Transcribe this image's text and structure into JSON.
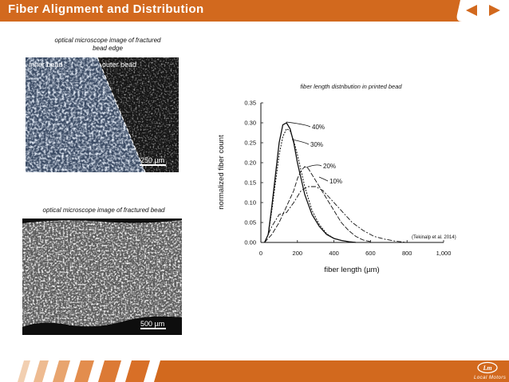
{
  "header": {
    "title": "Fiber Alignment and Distribution",
    "nav": {
      "prev_icon": "left-arrow-icon",
      "next_icon": "right-arrow-icon"
    }
  },
  "images": {
    "top": {
      "caption": "optical microscope image of fractured bead edge",
      "caption_line1": "optical microscope image of  fractured",
      "caption_line2": "bead edge",
      "inner_label": "inner bead",
      "outer_label": "outer bead",
      "scale_label": "250 µm"
    },
    "bottom": {
      "caption": "optical microscope image of  fractured bead",
      "scale_label": "500 µm"
    }
  },
  "chart_data": {
    "type": "line",
    "title": "fiber length distribution in printed bead",
    "xlabel": "fiber length (µm)",
    "ylabel": "normalized fiber count",
    "xlim": [
      0,
      1000
    ],
    "ylim": [
      0,
      0.35
    ],
    "x_ticks": [
      "0",
      "200",
      "400",
      "600",
      "800",
      "1,000"
    ],
    "y_ticks": [
      "0.00",
      "0.05",
      "0.10",
      "0.15",
      "0.20",
      "0.25",
      "0.30",
      "0.35"
    ],
    "grid": false,
    "citation": "(Tekinalp et al. 2014)",
    "series": [
      {
        "name": "40%",
        "x": [
          20,
          40,
          60,
          80,
          100,
          120,
          140,
          160,
          180,
          200,
          240,
          280,
          320,
          360,
          400,
          440,
          480,
          520
        ],
        "y": [
          0.0,
          0.02,
          0.09,
          0.17,
          0.25,
          0.295,
          0.3,
          0.285,
          0.25,
          0.2,
          0.12,
          0.07,
          0.04,
          0.02,
          0.01,
          0.005,
          0.002,
          0.0
        ]
      },
      {
        "name": "30%",
        "x": [
          20,
          40,
          60,
          80,
          100,
          120,
          140,
          160,
          180,
          200,
          240,
          280,
          320,
          360,
          400,
          440,
          480,
          520
        ],
        "y": [
          0.0,
          0.02,
          0.08,
          0.15,
          0.22,
          0.265,
          0.285,
          0.28,
          0.255,
          0.22,
          0.14,
          0.08,
          0.045,
          0.022,
          0.01,
          0.005,
          0.002,
          0.0
        ]
      },
      {
        "name": "20%",
        "x": [
          20,
          60,
          100,
          140,
          180,
          200,
          220,
          240,
          260,
          280,
          320,
          360,
          400,
          440,
          480,
          520,
          560,
          600
        ],
        "y": [
          0.0,
          0.02,
          0.05,
          0.09,
          0.13,
          0.16,
          0.18,
          0.19,
          0.185,
          0.17,
          0.14,
          0.11,
          0.08,
          0.05,
          0.03,
          0.015,
          0.006,
          0.002
        ]
      },
      {
        "name": "10%",
        "x": [
          20,
          60,
          100,
          140,
          180,
          220,
          260,
          300,
          340,
          380,
          420,
          460,
          500,
          560,
          620,
          680,
          740,
          800
        ],
        "y": [
          0.0,
          0.04,
          0.07,
          0.075,
          0.1,
          0.13,
          0.14,
          0.14,
          0.13,
          0.11,
          0.09,
          0.07,
          0.05,
          0.03,
          0.015,
          0.008,
          0.003,
          0.0
        ]
      }
    ]
  },
  "footer": {
    "logo_icon": "company-logo-icon",
    "logo_text": "Local Motors"
  },
  "colors": {
    "accent": "#d2691e",
    "bar_white": "#ffffff",
    "chart_line": "#111111"
  }
}
